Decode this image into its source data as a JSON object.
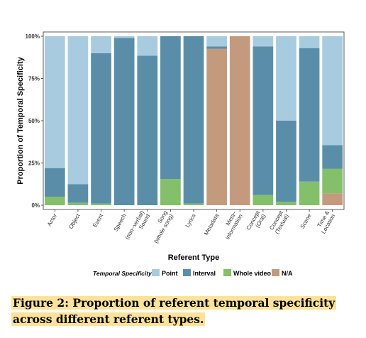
{
  "chart_data": {
    "type": "bar",
    "stacked": true,
    "normalized": true,
    "xlabel": "Referent Type",
    "ylabel": "Proportion of Temporal Specificity",
    "ylim": [
      0,
      100
    ],
    "yticks": [
      "0%",
      "25%",
      "50%",
      "75%",
      "100%"
    ],
    "categories": [
      "Actor",
      "Object",
      "Event",
      "Speech",
      "(non-verbal) Sound",
      "Song (whole song)",
      "Lyrics",
      "Metadata",
      "Meta-information",
      "Concept (Oral)",
      "Concept (Textual)",
      "Scene",
      "Time & Location"
    ],
    "category_lines": [
      [
        "Actor"
      ],
      [
        "Object"
      ],
      [
        "Event"
      ],
      [
        "Speech"
      ],
      [
        "(non−verbal)",
        "Sound"
      ],
      [
        "Song",
        "(whole song)"
      ],
      [
        "Lyrics"
      ],
      [
        "Metadata"
      ],
      [
        "Meta−",
        "information"
      ],
      [
        "Concept",
        "(Oral)"
      ],
      [
        "Concept",
        "(Textual)"
      ],
      [
        "Scene"
      ],
      [
        "Time &",
        "Location"
      ]
    ],
    "series": [
      {
        "name": "N/A",
        "color": "#c49a7e",
        "values": [
          0,
          0,
          0,
          0,
          0,
          0,
          0,
          92.5,
          100,
          0,
          0,
          0,
          7
        ]
      },
      {
        "name": "Whole video",
        "color": "#84bf6a",
        "values": [
          5,
          1.5,
          1,
          0,
          0,
          15.5,
          1,
          0,
          0,
          6,
          2,
          14,
          14.5
        ]
      },
      {
        "name": "Interval",
        "color": "#5a8ea8",
        "values": [
          17,
          11,
          89,
          99,
          88.5,
          84.5,
          99,
          1.5,
          0,
          88,
          48,
          79,
          14
        ]
      },
      {
        "name": "Point",
        "color": "#a9cbe0",
        "values": [
          78,
          87.5,
          10,
          1,
          11.5,
          0,
          0,
          6,
          0,
          6,
          50,
          7,
          64.5
        ]
      }
    ],
    "legend": {
      "title": "Temporal Specificity",
      "position": "bottom",
      "order": [
        "Point",
        "Interval",
        "Whole video",
        "N/A"
      ]
    },
    "grid": false
  },
  "caption": "Figure 2: Proportion of referent temporal specificity across different referent types."
}
